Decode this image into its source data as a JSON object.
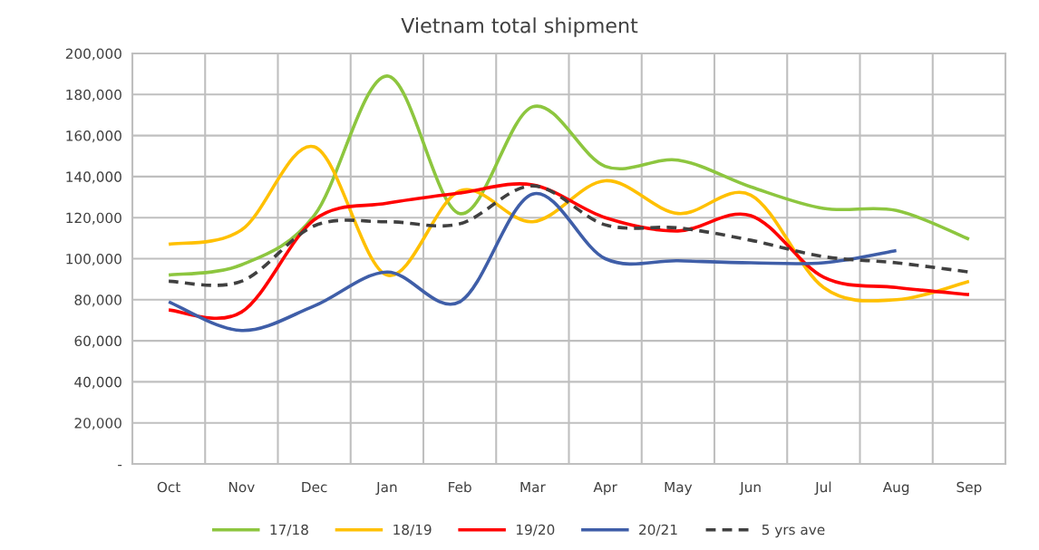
{
  "chart_data": {
    "type": "line",
    "title": "Vietnam total shipment",
    "categories": [
      "Oct",
      "Nov",
      "Dec",
      "Jan",
      "Feb",
      "Mar",
      "Apr",
      "May",
      "Jun",
      "Jul",
      "Aug",
      "Sep"
    ],
    "series": [
      {
        "name": "17/18",
        "color": "#8dc63f",
        "values": [
          92000,
          97000,
          121000,
          189000,
          122000,
          174000,
          145000,
          148000,
          135000,
          124500,
          123500,
          109500
        ]
      },
      {
        "name": "18/19",
        "color": "#ffc000",
        "values": [
          107000,
          114000,
          154500,
          92000,
          133000,
          118000,
          138000,
          122000,
          131000,
          86000,
          80000,
          89000
        ]
      },
      {
        "name": "19/20",
        "color": "#ff0000",
        "values": [
          75000,
          74000,
          119000,
          127000,
          132000,
          136000,
          120000,
          113500,
          121000,
          91000,
          86000,
          82500
        ]
      },
      {
        "name": "20/21",
        "color": "#3f5ea8",
        "values": [
          79000,
          65000,
          77000,
          93500,
          79000,
          131500,
          100000,
          99000,
          98000,
          98000,
          104000,
          null
        ]
      },
      {
        "name": "5 yrs ave",
        "color": "#404040",
        "line_style": "dashed",
        "values": [
          89000,
          89000,
          116000,
          118000,
          117000,
          135500,
          116500,
          115000,
          109000,
          101000,
          98000,
          93500
        ]
      }
    ],
    "ylim": [
      0,
      200000
    ],
    "yticks": [
      {
        "value": 0,
        "label": "-"
      },
      {
        "value": 20000,
        "label": "20,000"
      },
      {
        "value": 40000,
        "label": "40,000"
      },
      {
        "value": 60000,
        "label": "60,000"
      },
      {
        "value": 80000,
        "label": "80,000"
      },
      {
        "value": 100000,
        "label": "100,000"
      },
      {
        "value": 120000,
        "label": "120,000"
      },
      {
        "value": 140000,
        "label": "140,000"
      },
      {
        "value": 160000,
        "label": "160,000"
      },
      {
        "value": 180000,
        "label": "180,000"
      },
      {
        "value": 200000,
        "label": "200,000"
      }
    ],
    "grid": true,
    "legend": "bottom",
    "marker": "none",
    "line_style": "solid"
  }
}
